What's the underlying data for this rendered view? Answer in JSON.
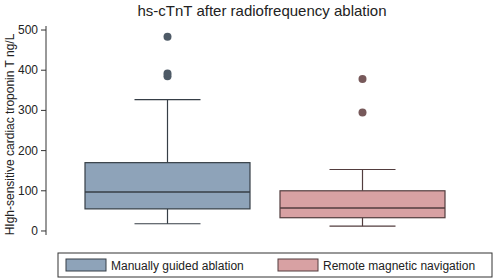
{
  "chart_data": {
    "type": "box",
    "title": "hs-cTnT after radiofrequency ablation",
    "y_label": "HIgh-sensitive cardiac troponin T ng/L",
    "ylim": [
      -10,
      510
    ],
    "yticks": [
      0,
      100,
      200,
      300,
      400,
      500
    ],
    "grid": false,
    "legend": "bottom",
    "series": [
      {
        "name": "Manually guided ablation",
        "color": "#8ea3b9",
        "min": 18,
        "q1": 55,
        "median": 97,
        "q3": 170,
        "max": 327,
        "outliers": [
          385,
          392,
          483
        ]
      },
      {
        "name": "Remote magnetic navigation",
        "color": "#d8a1a3",
        "min": 12,
        "q1": 33,
        "median": 57,
        "q3": 100,
        "max": 153,
        "outliers": [
          295,
          378
        ]
      }
    ]
  }
}
